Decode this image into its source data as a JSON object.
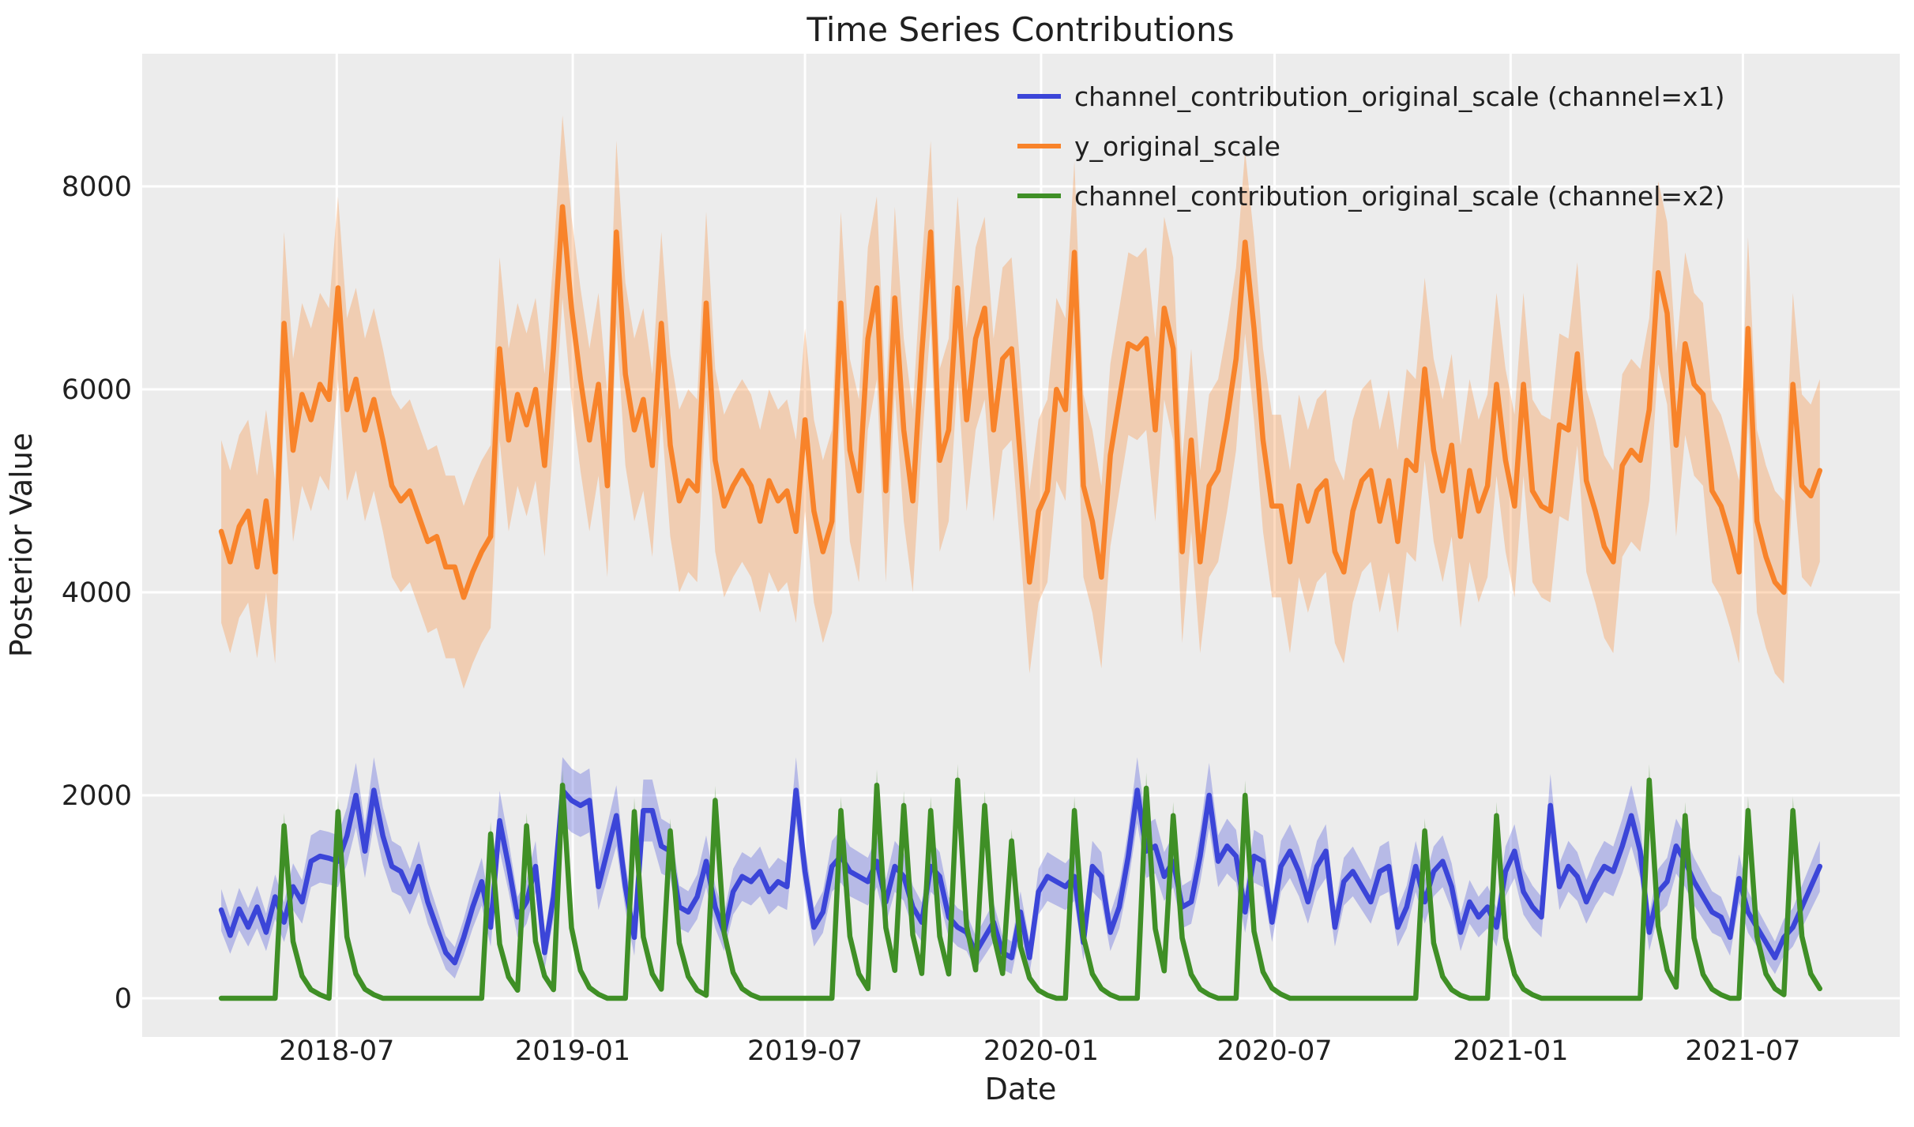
{
  "title": "Time Series Contributions",
  "xlabel": "Date",
  "ylabel": "Posterior Value",
  "colors": {
    "plot_background": "#ececec",
    "gridline": "#ffffff",
    "text": "#202020",
    "x1_line": "#3b45d8",
    "y_line": "#f8832a",
    "x2_line": "#3f8f26"
  },
  "legend": {
    "position": "upper right",
    "entries": [
      {
        "label": "channel_contribution_original_scale (channel=x1)",
        "color": "#3b45d8"
      },
      {
        "label": "y_original_scale",
        "color": "#f8832a"
      },
      {
        "label": "channel_contribution_original_scale (channel=x2)",
        "color": "#3f8f26"
      }
    ]
  },
  "chart_data": {
    "type": "line",
    "grid": true,
    "x_start": "2018-04-02",
    "x_step_days": 7,
    "n_points": 179,
    "x_domain_weeks": [
      -8.8,
      186.9
    ],
    "y_domain": [
      -381,
      9307
    ],
    "yticks": [
      0,
      2000,
      4000,
      6000,
      8000
    ],
    "xticks": [
      {
        "label": "2018-07",
        "week": 12.86
      },
      {
        "label": "2019-01",
        "week": 39.14
      },
      {
        "label": "2019-07",
        "week": 65.0
      },
      {
        "label": "2020-01",
        "week": 91.29
      },
      {
        "label": "2020-07",
        "week": 117.29
      },
      {
        "label": "2021-01",
        "week": 143.57
      },
      {
        "label": "2021-07",
        "week": 169.43
      }
    ],
    "series": [
      {
        "name": "channel_contribution_original_scale (channel=x1)",
        "color": "#3b45d8",
        "band": {
          "rel": 0.1,
          "abs": 120,
          "alpha": 0.3
        },
        "values": [
          870,
          620,
          880,
          700,
          900,
          650,
          1000,
          750,
          1100,
          950,
          1350,
          1400,
          1380,
          1350,
          1600,
          2000,
          1450,
          2050,
          1600,
          1300,
          1250,
          1050,
          1300,
          950,
          700,
          450,
          350,
          600,
          900,
          1150,
          700,
          1750,
          1300,
          800,
          950,
          1300,
          450,
          1000,
          2050,
          1950,
          1900,
          1950,
          1100,
          1450,
          1800,
          1100,
          600,
          1850,
          1850,
          1500,
          1450,
          900,
          850,
          1000,
          1350,
          900,
          650,
          1050,
          1200,
          1150,
          1250,
          1050,
          1150,
          1100,
          2050,
          1250,
          700,
          850,
          1300,
          1400,
          1250,
          1200,
          1150,
          1350,
          950,
          1300,
          1200,
          900,
          750,
          1300,
          1200,
          800,
          700,
          650,
          450,
          600,
          750,
          450,
          400,
          850,
          400,
          1050,
          1200,
          1150,
          1100,
          1200,
          550,
          1300,
          1200,
          650,
          900,
          1400,
          2050,
          1450,
          1500,
          1200,
          1350,
          900,
          950,
          1400,
          2000,
          1350,
          1500,
          1400,
          850,
          1400,
          1350,
          750,
          1300,
          1450,
          1250,
          950,
          1300,
          1450,
          700,
          1150,
          1250,
          1100,
          950,
          1250,
          1300,
          700,
          900,
          1300,
          950,
          1250,
          1350,
          1100,
          650,
          950,
          800,
          900,
          700,
          1250,
          1450,
          1050,
          900,
          800,
          1900,
          1100,
          1300,
          1200,
          950,
          1150,
          1300,
          1250,
          1500,
          1800,
          1450,
          650,
          1050,
          1150,
          1500,
          1350,
          1150,
          1000,
          850,
          800,
          600,
          1180,
          850,
          700,
          550,
          400,
          600,
          700,
          900,
          1100,
          1300
        ]
      },
      {
        "name": "y_original_scale",
        "color": "#f8832a",
        "band": {
          "rel": 0.0,
          "abs": 900,
          "alpha": 0.3
        },
        "values": [
          4600,
          4300,
          4650,
          4800,
          4250,
          4900,
          4200,
          6650,
          5400,
          5950,
          5700,
          6050,
          5900,
          7000,
          5800,
          6100,
          5600,
          5900,
          5500,
          5050,
          4900,
          5000,
          4750,
          4500,
          4550,
          4250,
          4250,
          3950,
          4200,
          4400,
          4550,
          6400,
          5500,
          5950,
          5650,
          6000,
          5250,
          6400,
          7800,
          6800,
          6100,
          5500,
          6050,
          5050,
          7550,
          6150,
          5600,
          5900,
          5250,
          6650,
          5450,
          4900,
          5100,
          5000,
          6850,
          5300,
          4850,
          5050,
          5200,
          5050,
          4700,
          5100,
          4900,
          5000,
          4600,
          5700,
          4800,
          4400,
          4700,
          6850,
          5400,
          5000,
          6500,
          7000,
          5000,
          6900,
          5600,
          4900,
          6350,
          7550,
          5300,
          5600,
          7000,
          5700,
          6500,
          6800,
          5600,
          6300,
          6400,
          5300,
          4100,
          4800,
          5000,
          6000,
          5800,
          7350,
          5050,
          4700,
          4150,
          5350,
          5900,
          6450,
          6400,
          6500,
          5600,
          6800,
          6400,
          4400,
          5500,
          4300,
          5050,
          5200,
          5700,
          6300,
          7450,
          6600,
          5500,
          4850,
          4850,
          4300,
          5050,
          4700,
          5000,
          5100,
          4400,
          4200,
          4800,
          5100,
          5200,
          4700,
          5100,
          4500,
          5300,
          5200,
          6200,
          5400,
          5000,
          5450,
          4550,
          5200,
          4800,
          5050,
          6050,
          5300,
          4850,
          6050,
          5000,
          4850,
          4800,
          5650,
          5600,
          6350,
          5100,
          4800,
          4450,
          4300,
          5250,
          5400,
          5300,
          5800,
          7150,
          6750,
          5450,
          6450,
          6050,
          5950,
          5000,
          4850,
          4550,
          4200,
          6600,
          4700,
          4350,
          4100,
          4000,
          6050,
          5050,
          4950,
          5200
        ]
      },
      {
        "name": "channel_contribution_original_scale (channel=x2)",
        "color": "#3f8f26",
        "band": {
          "rel": 0.07,
          "abs": 8,
          "alpha": 0.3
        },
        "values": [
          0,
          0,
          0,
          0,
          0,
          0,
          0,
          1700,
          560,
          220,
          85,
          35,
          0,
          1840,
          605,
          240,
          90,
          35,
          0,
          0,
          0,
          0,
          0,
          0,
          0,
          0,
          0,
          0,
          0,
          0,
          1620,
          535,
          210,
          80,
          1700,
          560,
          220,
          85,
          2100,
          695,
          275,
          105,
          40,
          0,
          0,
          0,
          1840,
          605,
          240,
          90,
          1650,
          545,
          215,
          80,
          30,
          1950,
          645,
          255,
          95,
          35,
          0,
          0,
          0,
          0,
          0,
          0,
          0,
          0,
          0,
          1850,
          610,
          240,
          95,
          2100,
          695,
          275,
          1900,
          625,
          245,
          1850,
          610,
          240,
          2150,
          710,
          280,
          1900,
          625,
          245,
          1550,
          510,
          200,
          80,
          30,
          0,
          0,
          1850,
          610,
          240,
          95,
          35,
          0,
          0,
          0,
          2070,
          685,
          270,
          1800,
          595,
          235,
          90,
          35,
          0,
          0,
          0,
          2000,
          660,
          260,
          100,
          40,
          0,
          0,
          0,
          0,
          0,
          0,
          0,
          0,
          0,
          0,
          0,
          0,
          0,
          0,
          0,
          1650,
          545,
          215,
          85,
          30,
          0,
          0,
          0,
          1800,
          595,
          235,
          90,
          35,
          0,
          0,
          0,
          0,
          0,
          0,
          0,
          0,
          0,
          0,
          0,
          0,
          2150,
          710,
          280,
          110,
          1800,
          595,
          235,
          90,
          35,
          0,
          0,
          1850,
          610,
          240,
          95,
          35,
          1850,
          610,
          240,
          95
        ]
      }
    ]
  }
}
